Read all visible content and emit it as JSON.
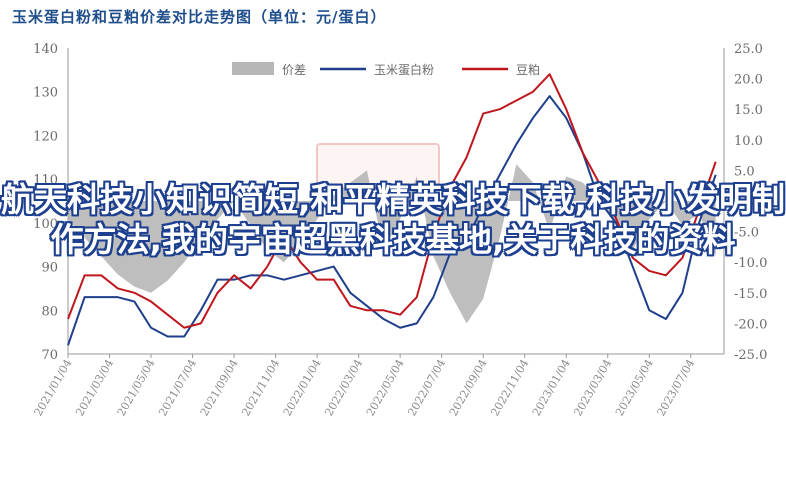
{
  "overlay_text": "航天科技小知识简短,和平精英科技下载,科技小发明制作方法,我的宇宙超黑科技基地,关于科技的资料",
  "chart_data": {
    "type": "line",
    "title": "玉米蛋白粉和豆粕价差对比走势图（单位：元/蛋白）",
    "left_axis": {
      "ylim": [
        70,
        140
      ],
      "ticks": [
        70,
        80,
        90,
        100,
        110,
        120,
        130,
        140
      ]
    },
    "right_axis": {
      "ylim": [
        -25,
        25
      ],
      "ticks": [
        -25.0,
        -20.0,
        -15.0,
        -10.0,
        -5.0,
        0.0,
        5.0,
        10.0,
        15.0,
        20.0,
        25.0
      ]
    },
    "x_tick_labels": [
      "2021/01/04",
      "2021/03/04",
      "2021/05/04",
      "2021/07/04",
      "2021/09/04",
      "2021/11/04",
      "2022/01/04",
      "2022/03/04",
      "2022/05/04",
      "2022/07/04",
      "2022/09/04",
      "2022/11/04",
      "2023/01/04",
      "2023/03/04",
      "2023/05/04",
      "2023/07/04"
    ],
    "x_index": [
      0,
      2,
      4,
      6,
      8,
      10,
      12,
      14,
      16,
      18,
      20,
      22,
      24,
      26,
      28,
      30,
      32,
      34,
      36,
      38,
      40,
      42,
      44,
      46,
      48,
      50,
      52,
      54,
      56,
      58,
      60,
      62,
      64,
      66,
      68,
      70,
      72,
      74,
      76,
      78
    ],
    "series": [
      {
        "name": "价差",
        "type": "area",
        "axis": "right",
        "color": "#b7b7b7",
        "values": [
          -3,
          -6,
          -9,
          -12,
          -14,
          -15,
          -13,
          -10,
          -6,
          -3,
          0,
          -4,
          -8,
          -10,
          -7,
          -3,
          1,
          3,
          5,
          -8,
          -3,
          4,
          -9,
          -15,
          -20,
          -16,
          -6,
          6,
          3,
          -5,
          4,
          3,
          0,
          -4,
          -8,
          -3,
          0,
          -4,
          -2,
          -9
        ]
      },
      {
        "name": "玉米蛋白粉",
        "type": "line",
        "axis": "left",
        "color": "#1f3f8c",
        "values": [
          72,
          83,
          83,
          83,
          82,
          76,
          74,
          74,
          80,
          87,
          87,
          88,
          88,
          87,
          88,
          89,
          90,
          84,
          81,
          78,
          76,
          77,
          83,
          93,
          96,
          104,
          111,
          118,
          124,
          129,
          124,
          116,
          105,
          100,
          90,
          80,
          78,
          84,
          100,
          111
        ]
      },
      {
        "name": "豆粕",
        "type": "line",
        "axis": "left",
        "color": "#c0161d",
        "values": [
          78,
          88,
          88,
          85,
          84,
          82,
          79,
          76,
          77,
          84,
          88,
          85,
          90,
          97,
          91,
          87,
          87,
          81,
          80,
          80,
          79,
          83,
          97,
          108,
          115,
          125,
          126,
          128,
          130,
          134,
          126,
          116,
          109,
          101,
          92,
          89,
          88,
          92,
          103,
          114
        ]
      }
    ]
  }
}
